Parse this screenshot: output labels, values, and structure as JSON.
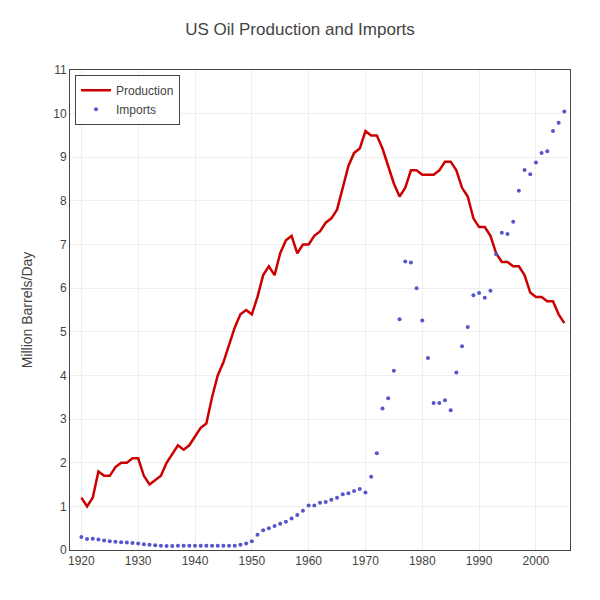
{
  "chart_data": {
    "type": "line",
    "title": "US Oil Production and Imports",
    "ylabel": "Million Barrels/Day",
    "x": [
      1920,
      1921,
      1922,
      1923,
      1924,
      1925,
      1926,
      1927,
      1928,
      1929,
      1930,
      1931,
      1932,
      1933,
      1934,
      1935,
      1936,
      1937,
      1938,
      1939,
      1940,
      1941,
      1942,
      1943,
      1944,
      1945,
      1946,
      1947,
      1948,
      1949,
      1950,
      1951,
      1952,
      1953,
      1954,
      1955,
      1956,
      1957,
      1958,
      1959,
      1960,
      1961,
      1962,
      1963,
      1964,
      1965,
      1966,
      1967,
      1968,
      1969,
      1970,
      1971,
      1972,
      1973,
      1974,
      1975,
      1976,
      1977,
      1978,
      1979,
      1980,
      1981,
      1982,
      1983,
      1984,
      1985,
      1986,
      1987,
      1988,
      1989,
      1990,
      1991,
      1992,
      1993,
      1994,
      1995,
      1996,
      1997,
      1998,
      1999,
      2000,
      2001,
      2002,
      2003,
      2004,
      2005
    ],
    "series": [
      {
        "name": "Production",
        "color": "#cc0000",
        "line_style": "solid",
        "values": [
          1.2,
          1.0,
          1.2,
          1.8,
          1.7,
          1.7,
          1.9,
          2.0,
          2.0,
          2.1,
          2.1,
          1.7,
          1.5,
          1.6,
          1.7,
          2.0,
          2.2,
          2.4,
          2.3,
          2.4,
          2.6,
          2.8,
          2.9,
          3.5,
          4.0,
          4.3,
          4.7,
          5.1,
          5.4,
          5.5,
          5.4,
          5.8,
          6.3,
          6.5,
          6.3,
          6.8,
          7.1,
          7.2,
          6.8,
          7.0,
          7.0,
          7.2,
          7.3,
          7.5,
          7.6,
          7.8,
          8.3,
          8.8,
          9.1,
          9.2,
          9.6,
          9.5,
          9.5,
          9.2,
          8.8,
          8.4,
          8.1,
          8.3,
          8.7,
          8.7,
          8.6,
          8.6,
          8.6,
          8.7,
          8.9,
          8.9,
          8.7,
          8.3,
          8.1,
          7.6,
          7.4,
          7.4,
          7.2,
          6.8,
          6.6,
          6.6,
          6.5,
          6.5,
          6.3,
          5.9,
          5.8,
          5.8,
          5.7,
          5.7,
          5.4,
          5.2
        ]
      },
      {
        "name": "Imports",
        "color": "#5555cc",
        "line_style": "none",
        "marker": "dot",
        "values": [
          0.3,
          0.25,
          0.26,
          0.24,
          0.22,
          0.2,
          0.19,
          0.18,
          0.17,
          0.16,
          0.15,
          0.13,
          0.12,
          0.11,
          0.1,
          0.09,
          0.09,
          0.1,
          0.1,
          0.1,
          0.1,
          0.1,
          0.1,
          0.1,
          0.1,
          0.1,
          0.1,
          0.1,
          0.12,
          0.15,
          0.2,
          0.35,
          0.45,
          0.5,
          0.55,
          0.6,
          0.65,
          0.72,
          0.8,
          0.9,
          1.02,
          1.02,
          1.08,
          1.1,
          1.15,
          1.2,
          1.28,
          1.3,
          1.35,
          1.4,
          1.32,
          1.68,
          2.22,
          3.24,
          3.48,
          4.11,
          5.29,
          6.61,
          6.59,
          6.0,
          5.26,
          4.4,
          3.37,
          3.37,
          3.43,
          3.2,
          4.07,
          4.67,
          5.11,
          5.84,
          5.89,
          5.78,
          5.94,
          6.78,
          7.27,
          7.24,
          7.52,
          8.23,
          8.71,
          8.61,
          8.88,
          9.1,
          9.14,
          9.6,
          9.79,
          10.05
        ]
      }
    ],
    "xlim": [
      1918,
      2006
    ],
    "ylim": [
      0,
      11
    ],
    "xticks": [
      1920,
      1930,
      1940,
      1950,
      1960,
      1970,
      1980,
      1990,
      2000
    ],
    "yticks": [
      0,
      1,
      2,
      3,
      4,
      5,
      6,
      7,
      8,
      9,
      10,
      11
    ],
    "grid": true,
    "legend": "upper left"
  }
}
